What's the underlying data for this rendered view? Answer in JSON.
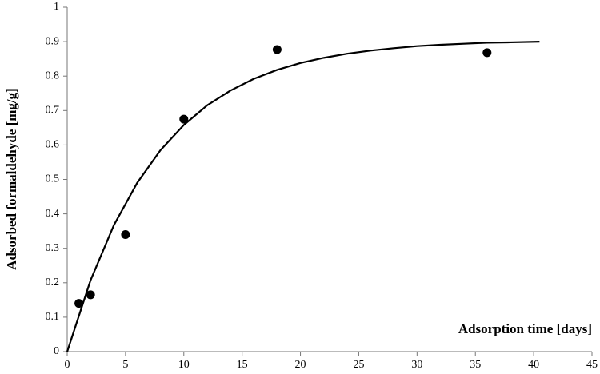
{
  "chart_data": {
    "type": "scatter",
    "x_label": "Adsorption time [days]",
    "y_label": "Adsorbed formaldehyde [mg/g]",
    "xlim": [
      0,
      45
    ],
    "xticks": [
      0,
      5,
      10,
      15,
      20,
      25,
      30,
      35,
      40,
      45
    ],
    "ylim": [
      0,
      1
    ],
    "yticks": [
      0,
      0.1,
      0.2,
      0.3,
      0.4,
      0.5,
      0.6,
      0.7,
      0.8,
      0.9,
      1
    ],
    "grid": false,
    "series": [
      {
        "type": "scatter",
        "color": "#000000",
        "x": [
          1,
          2,
          5,
          10,
          18,
          36
        ],
        "values": [
          0.14,
          0.165,
          0.34,
          0.675,
          0.877,
          0.868
        ]
      },
      {
        "type": "line",
        "color": "#000000",
        "x": [
          0,
          2,
          4,
          6,
          8,
          10,
          12,
          14,
          16,
          18,
          20,
          22,
          24,
          26,
          28,
          30,
          32,
          34,
          36,
          38,
          40.5
        ],
        "values": [
          0,
          0.207,
          0.367,
          0.49,
          0.585,
          0.658,
          0.715,
          0.758,
          0.792,
          0.818,
          0.838,
          0.853,
          0.865,
          0.874,
          0.881,
          0.887,
          0.891,
          0.894,
          0.897,
          0.898,
          0.9
        ]
      }
    ]
  }
}
